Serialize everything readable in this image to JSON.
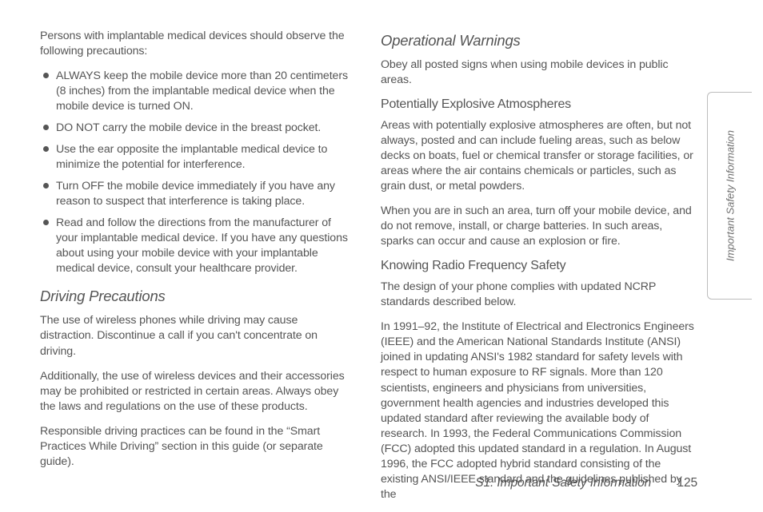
{
  "left": {
    "intro": "Persons with implantable medical devices should observe the following precautions:",
    "bullets": {
      "0": "ALWAYS keep the mobile device more than 20 centimeters (8 inches) from the implantable medical device when the mobile device is turned ON.",
      "1": "DO NOT carry the mobile device in the breast pocket.",
      "2": "Use the ear opposite the implantable medical device to minimize the potential for interference.",
      "3": "Turn OFF the mobile device immediately if you have any reason to suspect that interference is taking place.",
      "4": "Read and follow the directions from the manufacturer of your implantable medical device. If you have any questions about using your mobile device with your implantable medical device, consult your healthcare provider."
    },
    "h_driving": "Driving Precautions",
    "driving_p1": "The use of wireless phones while driving may cause distraction. Discontinue a call if you can't concentrate on driving.",
    "driving_p2": "Additionally, the use of wireless devices and their accessories may be prohibited or restricted in certain areas. Always obey the laws and regulations on the use of these products.",
    "driving_p3": "Responsible driving practices can be found in the “Smart Practices While Driving” section in this guide (or separate guide)."
  },
  "right": {
    "h_op": "Operational Warnings",
    "op_p1": "Obey all posted signs when using mobile devices in public areas.",
    "h_pea": "Potentially Explosive Atmospheres",
    "pea_p1": "Areas with potentially explosive atmospheres are often, but not always, posted and can include fueling areas, such as below decks on boats, fuel or chemical transfer or storage facilities, or areas where the air contains chemicals or particles, such as grain dust, or metal powders.",
    "pea_p2": "When you are in such an area, turn off your mobile device, and do not remove, install, or charge batteries. In such areas, sparks can occur and cause an explosion or fire.",
    "h_rf": "Knowing Radio Frequency Safety",
    "rf_p1": "The design of your phone complies with updated NCRP standards described below.",
    "rf_p2": "In 1991–92, the Institute of Electrical and Electronics Engineers (IEEE) and the American National Standards Institute (ANSI) joined in updating ANSI's 1982 standard for safety levels with respect to human exposure to RF signals. More than 120 scientists, engineers and physicians from universities, government health agencies and industries developed this updated standard after reviewing the available body of research. In 1993, the Federal Communications Commission (FCC) adopted this updated standard in a regulation. In August 1996, the FCC adopted hybrid standard consisting of the existing ANSI/IEEE standard and the guidelines published by the"
  },
  "footer": {
    "section": "S1. Important Safety Information",
    "page": "125"
  },
  "tab": "Important Safety Information"
}
